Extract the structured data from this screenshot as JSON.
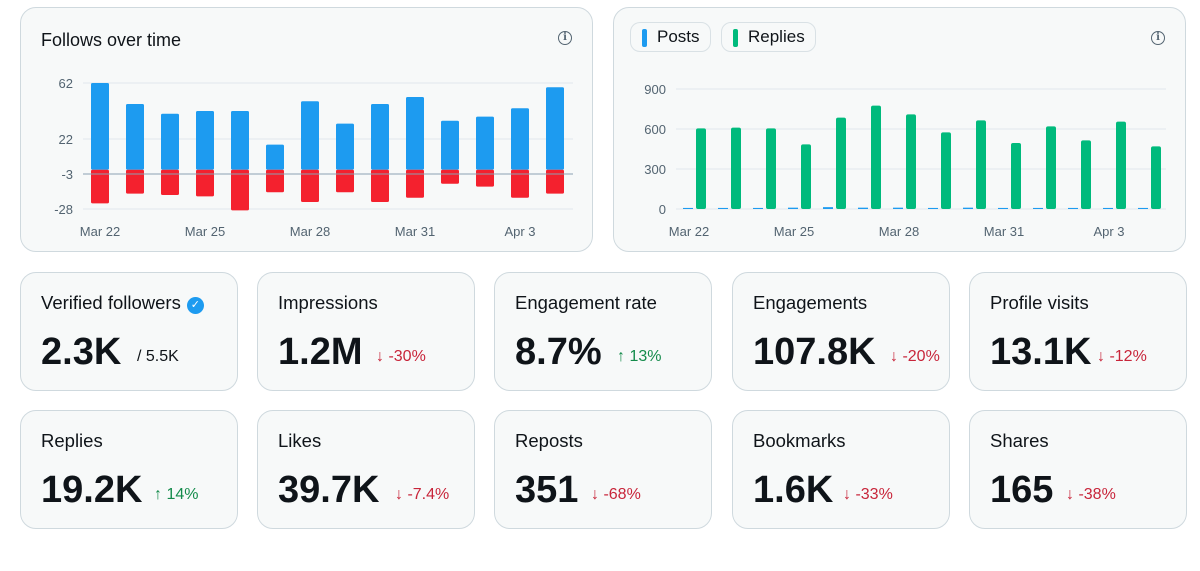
{
  "follows_chart": {
    "title": "Follows over time",
    "info_icon": "info-icon",
    "chart_data": {
      "type": "bar",
      "title": "Follows over time",
      "categories": [
        "Mar 22",
        "Mar 23",
        "Mar 24",
        "Mar 25",
        "Mar 26",
        "Mar 27",
        "Mar 28",
        "Mar 29",
        "Mar 30",
        "Mar 31",
        "Apr 1",
        "Apr 2",
        "Apr 3",
        "Apr 4"
      ],
      "tick_labels": [
        "Mar 22",
        "Mar 25",
        "Mar 28",
        "Mar 31",
        "Apr 3"
      ],
      "y_ticks": [
        62,
        22,
        -3,
        -28
      ],
      "ylim": [
        -28,
        62
      ],
      "series": [
        {
          "name": "",
          "color": "#1d9bf0",
          "values": [
            62,
            47,
            40,
            42,
            42,
            18,
            49,
            33,
            47,
            52,
            35,
            38,
            44,
            59
          ]
        },
        {
          "name": "",
          "color": "#f4212e",
          "values": [
            -24,
            -17,
            -18,
            -19,
            -29,
            -16,
            -23,
            -16,
            -23,
            -20,
            -10,
            -12,
            -20,
            -17
          ]
        }
      ],
      "grid": true
    }
  },
  "posts_chart": {
    "legend": [
      {
        "label": "Posts",
        "color": "#1d9bf0"
      },
      {
        "label": "Replies",
        "color": "#00ba7c"
      }
    ],
    "info_icon": "info-icon",
    "chart_data": {
      "type": "bar",
      "categories": [
        "Mar 22",
        "Mar 23",
        "Mar 24",
        "Mar 25",
        "Mar 26",
        "Mar 27",
        "Mar 28",
        "Mar 29",
        "Mar 30",
        "Mar 31",
        "Apr 1",
        "Apr 2",
        "Apr 3",
        "Apr 4"
      ],
      "tick_labels": [
        "Mar 22",
        "Mar 25",
        "Mar 28",
        "Mar 31",
        "Apr 3"
      ],
      "y_ticks": [
        900,
        600,
        300,
        0
      ],
      "ylim": [
        0,
        900
      ],
      "legend": "top-left",
      "series": [
        {
          "name": "Posts",
          "color": "#1d9bf0",
          "values": [
            8,
            8,
            8,
            10,
            14,
            10,
            10,
            8,
            10,
            8,
            8,
            8,
            8,
            8
          ]
        },
        {
          "name": "Replies",
          "color": "#00ba7c",
          "values": [
            605,
            610,
            605,
            485,
            685,
            775,
            710,
            575,
            665,
            495,
            620,
            515,
            655,
            470
          ]
        }
      ],
      "grid": true
    }
  },
  "stats": [
    {
      "label": "Verified followers",
      "value": "2.3K",
      "suffix": "/ 5.5K",
      "delta": "",
      "dir": "none",
      "verified": true
    },
    {
      "label": "Impressions",
      "value": "1.2M",
      "delta": "↓ -30%",
      "dir": "down"
    },
    {
      "label": "Engagement rate",
      "value": "8.7%",
      "delta": "↑ 13%",
      "dir": "up"
    },
    {
      "label": "Engagements",
      "value": "107.8K",
      "delta": "↓ -20%",
      "dir": "down"
    },
    {
      "label": "Profile visits",
      "value": "13.1K",
      "delta": "↓ -12%",
      "dir": "down"
    },
    {
      "label": "Replies",
      "value": "19.2K",
      "delta": "↑ 14%",
      "dir": "up"
    },
    {
      "label": "Likes",
      "value": "39.7K",
      "delta": "↓ -7.4%",
      "dir": "down"
    },
    {
      "label": "Reposts",
      "value": "351",
      "delta": "↓ -68%",
      "dir": "down"
    },
    {
      "label": "Bookmarks",
      "value": "1.6K",
      "delta": "↓ -33%",
      "dir": "down"
    },
    {
      "label": "Shares",
      "value": "165",
      "delta": "↓ -38%",
      "dir": "down"
    }
  ]
}
